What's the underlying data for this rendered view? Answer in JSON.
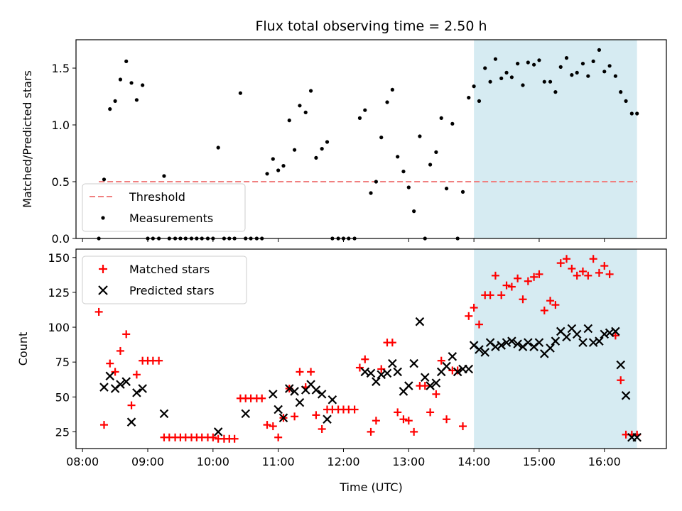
{
  "colors": {
    "highlight": "#add8e6",
    "threshold": "#f08080",
    "measurement": "#000000",
    "matched": "#ff0000",
    "predicted": "#000000"
  },
  "chart_data": [
    {
      "type": "scatter",
      "title": "Flux total observing time = 2.50 h",
      "xlabel": "",
      "ylabel": "Matched/Predicted stars",
      "ylim": [
        0,
        1.75
      ],
      "yticks": [
        0.0,
        0.5,
        1.0,
        1.5
      ],
      "ytick_labels": [
        "0.0",
        "0.5",
        "1.0",
        "1.5"
      ],
      "xlim_hours": [
        7.9,
        16.95
      ],
      "highlight_span_hours": [
        14.0,
        16.5
      ],
      "threshold": 0.5,
      "legend": {
        "position": "lower-left",
        "entries": [
          "Threshold",
          "Measurements"
        ]
      },
      "series": [
        {
          "name": "Measurements",
          "x_hours": [
            8.25,
            8.33,
            8.42,
            8.5,
            8.58,
            8.67,
            8.75,
            8.83,
            8.92,
            9.0,
            9.08,
            9.17,
            9.25,
            9.33,
            9.42,
            9.5,
            9.58,
            9.67,
            9.75,
            9.83,
            9.92,
            10.0,
            10.08,
            10.17,
            10.25,
            10.33,
            10.42,
            10.5,
            10.58,
            10.67,
            10.75,
            10.83,
            10.92,
            11.0,
            11.08,
            11.17,
            11.25,
            11.33,
            11.42,
            11.5,
            11.58,
            11.67,
            11.75,
            11.83,
            11.92,
            12.0,
            12.08,
            12.17,
            12.25,
            12.33,
            12.42,
            12.5,
            12.58,
            12.67,
            12.75,
            12.83,
            12.92,
            13.0,
            13.08,
            13.17,
            13.25,
            13.33,
            13.42,
            13.5,
            13.58,
            13.67,
            13.75,
            13.83,
            13.92,
            14.0,
            14.08,
            14.17,
            14.25,
            14.33,
            14.42,
            14.5,
            14.58,
            14.67,
            14.75,
            14.83,
            14.92,
            15.0,
            15.08,
            15.17,
            15.25,
            15.33,
            15.42,
            15.5,
            15.58,
            15.67,
            15.75,
            15.83,
            15.92,
            16.0,
            16.08,
            16.17,
            16.25,
            16.33,
            16.42,
            16.5
          ],
          "y": [
            0.0,
            0.52,
            1.14,
            1.21,
            1.4,
            1.56,
            1.37,
            1.22,
            1.35,
            0.0,
            0.0,
            0.0,
            0.55,
            0.0,
            0.0,
            0.0,
            0.0,
            0.0,
            0.0,
            0.0,
            0.0,
            0.0,
            0.8,
            0.0,
            0.0,
            0.0,
            1.28,
            0.0,
            0.0,
            0.0,
            0.0,
            0.57,
            0.7,
            0.6,
            0.64,
            1.04,
            0.78,
            1.17,
            1.11,
            1.3,
            0.71,
            0.79,
            0.85,
            0.0,
            0.0,
            0.0,
            0.0,
            0.0,
            1.06,
            1.13,
            0.4,
            0.5,
            0.89,
            1.2,
            1.31,
            0.72,
            0.59,
            0.45,
            0.24,
            0.9,
            0.0,
            0.65,
            0.76,
            1.06,
            0.44,
            1.01,
            0.0,
            0.41,
            1.24,
            1.34,
            1.21,
            1.5,
            1.38,
            1.58,
            1.41,
            1.46,
            1.42,
            1.54,
            1.35,
            1.55,
            1.53,
            1.57,
            1.38,
            1.38,
            1.29,
            1.51,
            1.59,
            1.44,
            1.46,
            1.54,
            1.43,
            1.56,
            1.66,
            1.47,
            1.52,
            1.43,
            1.29,
            1.21,
            1.1,
            1.1
          ]
        }
      ]
    },
    {
      "type": "scatter",
      "title": "",
      "xlabel": "Time (UTC)",
      "ylabel": "Count",
      "ylim": [
        13,
        156
      ],
      "yticks": [
        25,
        50,
        75,
        100,
        125,
        150
      ],
      "ytick_labels": [
        "25",
        "50",
        "75",
        "100",
        "125",
        "150"
      ],
      "xlim_hours": [
        7.9,
        16.95
      ],
      "xticks_hours": [
        8,
        9,
        10,
        11,
        12,
        13,
        14,
        15,
        16
      ],
      "xtick_labels": [
        "08:00",
        "09:00",
        "10:00",
        "11:00",
        "12:00",
        "13:00",
        "14:00",
        "15:00",
        "16:00"
      ],
      "highlight_span_hours": [
        14.0,
        16.5
      ],
      "legend": {
        "position": "top-left",
        "entries": [
          "Matched stars",
          "Predicted stars"
        ]
      },
      "series": [
        {
          "name": "Matched stars",
          "marker": "plus",
          "x_hours": [
            8.25,
            8.33,
            8.42,
            8.5,
            8.58,
            8.67,
            8.75,
            8.83,
            8.92,
            9.0,
            9.08,
            9.17,
            9.25,
            9.33,
            9.42,
            9.5,
            9.58,
            9.67,
            9.75,
            9.83,
            9.92,
            10.0,
            10.08,
            10.17,
            10.25,
            10.33,
            10.42,
            10.5,
            10.58,
            10.67,
            10.75,
            10.83,
            10.92,
            11.0,
            11.08,
            11.17,
            11.25,
            11.33,
            11.42,
            11.5,
            11.58,
            11.67,
            11.75,
            11.83,
            11.92,
            12.0,
            12.08,
            12.17,
            12.25,
            12.33,
            12.42,
            12.5,
            12.58,
            12.67,
            12.75,
            12.83,
            12.92,
            13.0,
            13.08,
            13.17,
            13.25,
            13.33,
            13.42,
            13.5,
            13.58,
            13.67,
            13.75,
            13.83,
            13.92,
            14.0,
            14.08,
            14.17,
            14.25,
            14.33,
            14.42,
            14.5,
            14.58,
            14.67,
            14.75,
            14.83,
            14.92,
            15.0,
            15.08,
            15.17,
            15.25,
            15.33,
            15.42,
            15.5,
            15.58,
            15.67,
            15.75,
            15.83,
            15.92,
            16.0,
            16.08,
            16.17,
            16.25,
            16.33,
            16.42,
            16.5
          ],
          "y": [
            111,
            30,
            74,
            68,
            83,
            95,
            44,
            66,
            76,
            76,
            76,
            76,
            21,
            21,
            21,
            21,
            21,
            21,
            21,
            21,
            21,
            21,
            20,
            20,
            20,
            20,
            49,
            49,
            49,
            49,
            49,
            30,
            29,
            21,
            35,
            56,
            36,
            68,
            57,
            68,
            37,
            27,
            41,
            41,
            41,
            41,
            41,
            41,
            71,
            77,
            25,
            33,
            70,
            89,
            89,
            39,
            34,
            33,
            25,
            58,
            58,
            39,
            52,
            76,
            34,
            69,
            69,
            29,
            108,
            114,
            102,
            123,
            123,
            137,
            123,
            130,
            129,
            135,
            120,
            133,
            136,
            138,
            112,
            119,
            116,
            146,
            149,
            142,
            137,
            140,
            137,
            149,
            139,
            144,
            138,
            94,
            62,
            23,
            23,
            23
          ]
        },
        {
          "name": "Predicted stars",
          "marker": "x",
          "x_hours": [
            8.33,
            8.42,
            8.5,
            8.58,
            8.67,
            8.75,
            8.83,
            8.92,
            9.25,
            10.08,
            10.5,
            10.92,
            11.0,
            11.08,
            11.17,
            11.25,
            11.33,
            11.42,
            11.5,
            11.58,
            11.67,
            11.75,
            11.83,
            12.33,
            12.42,
            12.5,
            12.58,
            12.67,
            12.75,
            12.83,
            12.92,
            13.0,
            13.08,
            13.17,
            13.25,
            13.33,
            13.42,
            13.5,
            13.58,
            13.67,
            13.75,
            13.83,
            13.92,
            14.0,
            14.08,
            14.17,
            14.25,
            14.33,
            14.42,
            14.5,
            14.58,
            14.67,
            14.75,
            14.83,
            14.92,
            15.0,
            15.08,
            15.17,
            15.25,
            15.33,
            15.42,
            15.5,
            15.58,
            15.67,
            15.75,
            15.83,
            15.92,
            16.0,
            16.08,
            16.17,
            16.25,
            16.33,
            16.42,
            16.5
          ],
          "y": [
            57,
            65,
            56,
            59,
            61,
            32,
            53,
            56,
            38,
            25,
            38,
            52,
            41,
            35,
            56,
            54,
            46,
            55,
            59,
            55,
            52,
            34,
            48,
            68,
            67,
            61,
            66,
            67,
            74,
            68,
            54,
            58,
            74,
            104,
            64,
            58,
            60,
            68,
            72,
            79,
            68,
            70,
            70,
            87,
            84,
            82,
            89,
            86,
            87,
            89,
            90,
            88,
            86,
            89,
            86,
            89,
            81,
            85,
            90,
            97,
            93,
            99,
            95,
            89,
            99,
            89,
            90,
            95,
            96,
            97,
            73,
            51,
            21,
            21
          ]
        }
      ]
    }
  ]
}
